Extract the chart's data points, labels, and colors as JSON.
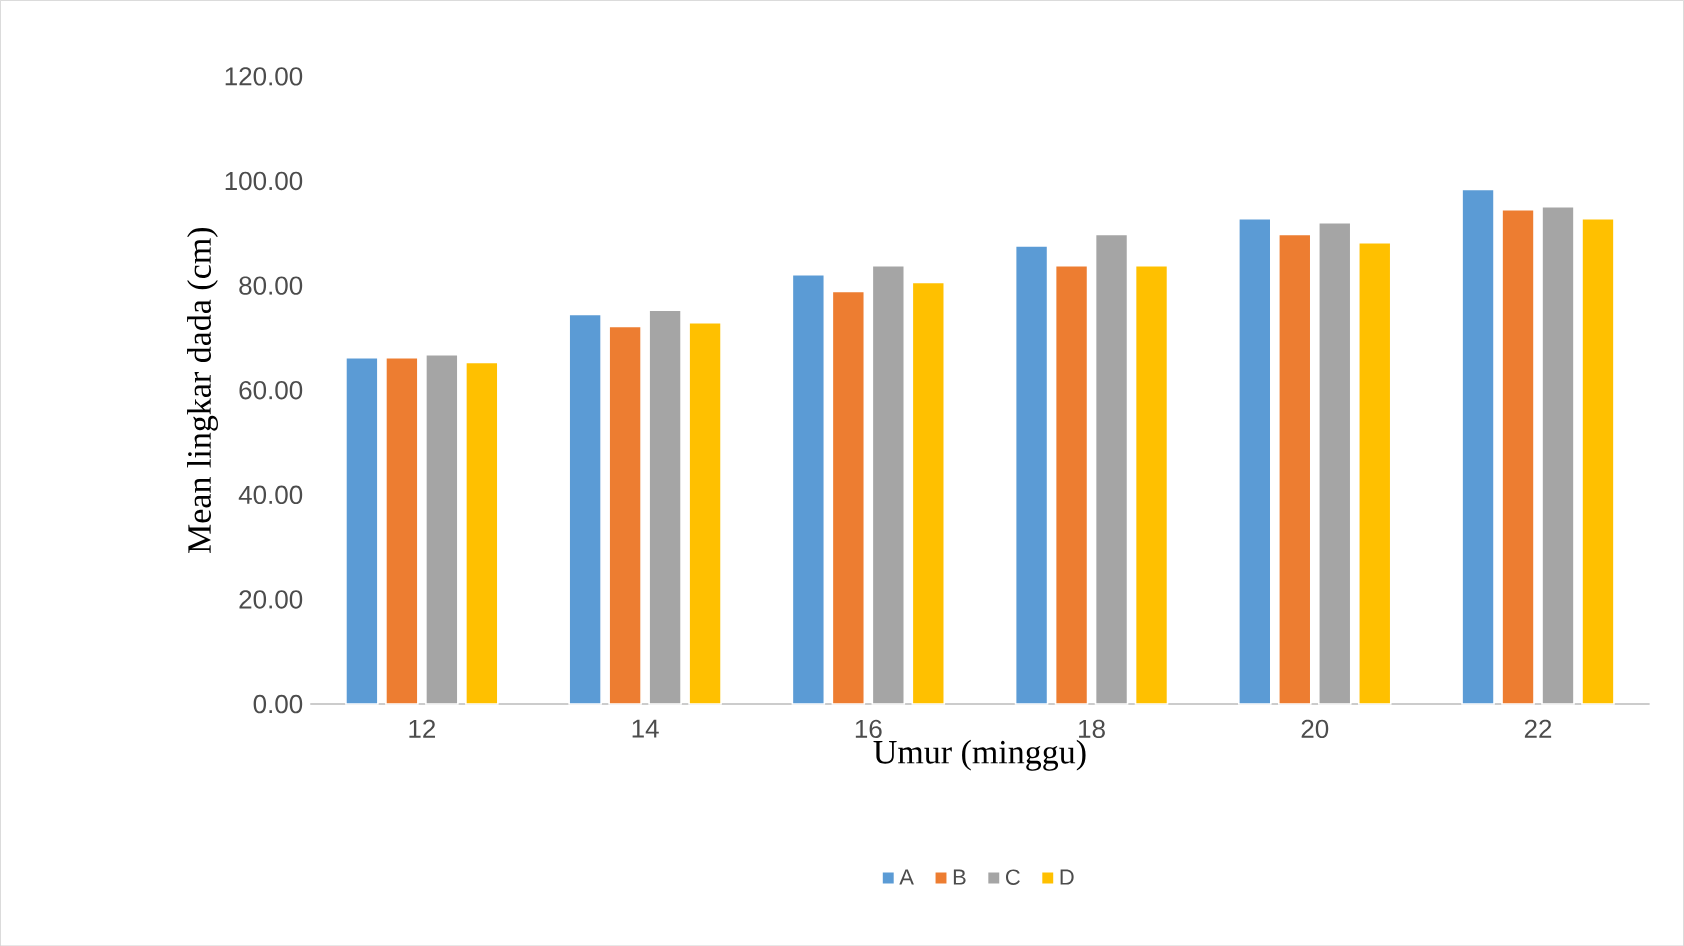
{
  "chart_data": {
    "type": "bar",
    "xlabel": "Umur (minggu)",
    "ylabel": "Mean lingkar dada (cm)",
    "categories": [
      "12",
      "14",
      "16",
      "18",
      "20",
      "22"
    ],
    "series": [
      {
        "name": "A",
        "color": "#5b9bd5",
        "values": [
          66.2,
          74.5,
          82.1,
          87.6,
          92.8,
          98.4
        ]
      },
      {
        "name": "B",
        "color": "#ed7d31",
        "values": [
          66.2,
          72.2,
          78.9,
          83.8,
          89.8,
          94.5
        ]
      },
      {
        "name": "C",
        "color": "#a5a5a5",
        "values": [
          66.8,
          75.3,
          83.8,
          89.8,
          92.0,
          95.1
        ]
      },
      {
        "name": "D",
        "color": "#ffc000",
        "values": [
          65.3,
          72.9,
          80.6,
          83.8,
          88.2,
          92.8
        ]
      }
    ],
    "ylim": [
      0,
      120
    ],
    "yticks": [
      {
        "value": 0,
        "label": "0.00"
      },
      {
        "value": 20,
        "label": "20.00"
      },
      {
        "value": 40,
        "label": "40.00"
      },
      {
        "value": 60,
        "label": "60.00"
      },
      {
        "value": 80,
        "label": "80.00"
      },
      {
        "value": 100,
        "label": "100.00"
      },
      {
        "value": 120,
        "label": "120.00"
      }
    ],
    "grid": false,
    "legend": "bottom"
  }
}
